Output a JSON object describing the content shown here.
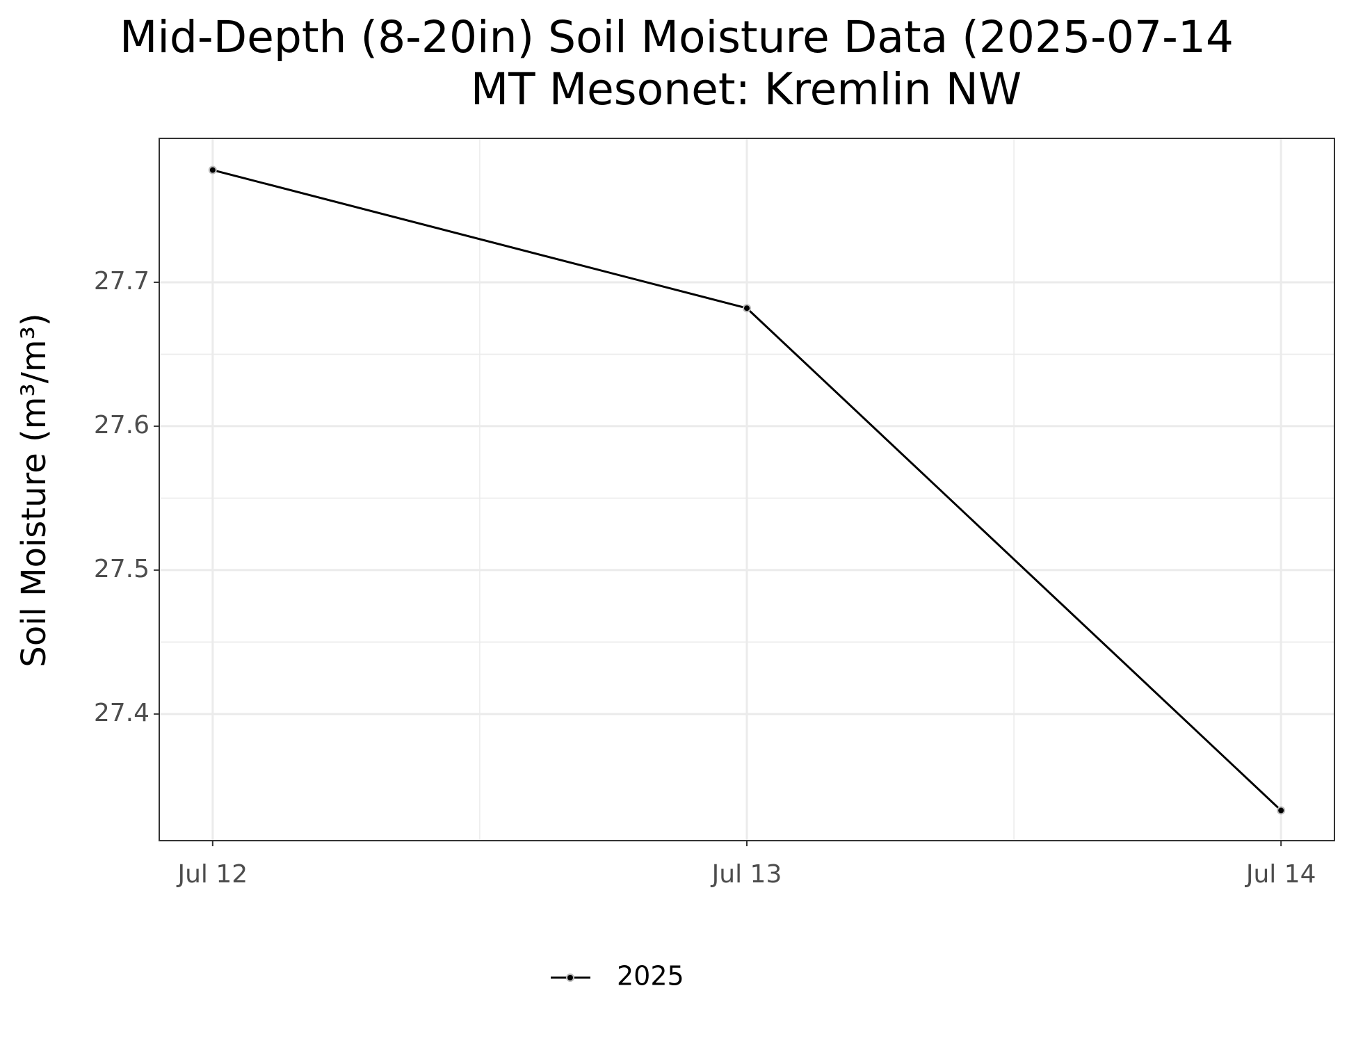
{
  "chart_data": {
    "type": "line",
    "title": "Mid-Depth (8-20in) Soil Moisture Data (2025-07-14",
    "subtitle": "MT Mesonet: Kremlin NW",
    "y_label": "Soil Moisture (m³/m³)",
    "categories": [
      "Jul 12",
      "Jul 13",
      "Jul 14"
    ],
    "series": [
      {
        "name": "2025",
        "color": "#000000",
        "values": [
          27.778,
          27.682,
          27.333
        ]
      }
    ],
    "ylim": [
      27.312,
      27.8
    ],
    "yticks": [
      27.4,
      27.5,
      27.6,
      27.7
    ],
    "grid": true,
    "legend": "bottom"
  }
}
